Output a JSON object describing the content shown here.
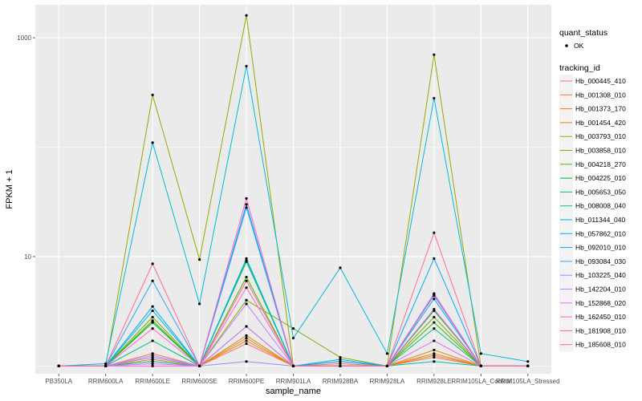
{
  "chart_data": {
    "type": "line",
    "xlabel": "sample_name",
    "ylabel": "FPKM + 1",
    "y_scale": "log10",
    "ylim": [
      0.85,
      2000
    ],
    "y_ticks": [
      {
        "value": 10,
        "label": "10"
      },
      {
        "value": 1000,
        "label": "1000"
      }
    ],
    "grid": true,
    "categories": [
      "PB350LA",
      "RRIM600LA",
      "RRIM600LE",
      "RRIM600SE",
      "RRIM600PE",
      "RRIM901LA",
      "RRIM928BA",
      "RRIM928LA",
      "RRIM928LE",
      "RRIM105LA_Control",
      "RRIM105LA_Stressed"
    ],
    "series": [
      {
        "name": "Hb_000445_410",
        "color": "#F8766D",
        "values": [
          1,
          1,
          1.1,
          1,
          1.6,
          1,
          1.1,
          1,
          1.2,
          1,
          1
        ]
      },
      {
        "name": "Hb_001308_010",
        "color": "#EF7F49",
        "values": [
          1,
          1,
          1.3,
          1,
          1.8,
          1,
          1.05,
          1,
          1.3,
          1,
          1
        ]
      },
      {
        "name": "Hb_001373_170",
        "color": "#E38900",
        "values": [
          1,
          1,
          1.2,
          1,
          1.7,
          1,
          1,
          1,
          1.4,
          1,
          1
        ]
      },
      {
        "name": "Hb_001454_420",
        "color": "#D39200",
        "values": [
          1,
          1,
          1.15,
          1,
          1.9,
          1,
          1,
          1,
          1.25,
          1,
          1
        ]
      },
      {
        "name": "Hb_003793_010",
        "color": "#9CA700",
        "values": [
          1,
          1,
          300,
          9.4,
          1600,
          1,
          1,
          1,
          700,
          1,
          1
        ]
      },
      {
        "name": "Hb_003858_010",
        "color": "#7CAE00",
        "values": [
          1,
          1,
          2.8,
          1,
          4,
          2.2,
          1.2,
          1,
          2.8,
          1,
          1
        ]
      },
      {
        "name": "Hb_004218_270",
        "color": "#49B500",
        "values": [
          1,
          1,
          2.6,
          1,
          6.5,
          1,
          1,
          1,
          2.5,
          1,
          1
        ]
      },
      {
        "name": "Hb_004225_010",
        "color": "#00BA38",
        "values": [
          1,
          1,
          2.5,
          1,
          9,
          1,
          1,
          1,
          3.2,
          1,
          1
        ]
      },
      {
        "name": "Hb_005653_050",
        "color": "#00BF7D",
        "values": [
          1,
          1,
          1.7,
          1,
          9.2,
          1,
          1,
          1,
          2.2,
          1,
          1
        ]
      },
      {
        "name": "Hb_008008_040",
        "color": "#00C0AF",
        "values": [
          1,
          1,
          1.1,
          1,
          2.3,
          1,
          1,
          1,
          1.1,
          1,
          1
        ]
      },
      {
        "name": "Hb_011344_040",
        "color": "#00BCD8",
        "values": [
          1,
          1.05,
          110,
          3.7,
          550,
          1.8,
          7.9,
          1.3,
          280,
          1.3,
          1.1
        ]
      },
      {
        "name": "Hb_057862_010",
        "color": "#00B5EE",
        "values": [
          1,
          1,
          3.2,
          1,
          9.6,
          1,
          1.15,
          1,
          4.1,
          1,
          1
        ]
      },
      {
        "name": "Hb_092010_010",
        "color": "#00A9FF",
        "values": [
          1,
          1,
          3.5,
          1,
          30,
          1,
          1.1,
          1,
          9.6,
          1,
          1
        ]
      },
      {
        "name": "Hb_093084_030",
        "color": "#35A2FF",
        "values": [
          1,
          1,
          6,
          1,
          28,
          1,
          1,
          1,
          4.4,
          1,
          1
        ]
      },
      {
        "name": "Hb_103225_040",
        "color": "#9590FF",
        "values": [
          1,
          1,
          1.2,
          1,
          1.1,
          1,
          1,
          1,
          4.6,
          1,
          1
        ]
      },
      {
        "name": "Hb_142204_010",
        "color": "#C77CFF",
        "values": [
          1,
          1,
          1.25,
          1,
          3.7,
          1,
          1,
          1,
          4.5,
          1,
          1
        ]
      },
      {
        "name": "Hb_152868_020",
        "color": "#E76BF3",
        "values": [
          1,
          1,
          1.05,
          1,
          2.3,
          1,
          1,
          1,
          1.7,
          1,
          1
        ]
      },
      {
        "name": "Hb_162450_010",
        "color": "#FA62DB",
        "values": [
          1,
          1,
          1,
          1,
          5.2,
          1,
          1,
          1,
          3.3,
          1,
          1
        ]
      },
      {
        "name": "Hb_181908_010",
        "color": "#FF62BC",
        "values": [
          1,
          1,
          2.2,
          1,
          34,
          1,
          1,
          1,
          4.5,
          1,
          1
        ]
      },
      {
        "name": "Hb_185608_010",
        "color": "#FF6C91",
        "values": [
          1,
          1,
          8.6,
          1,
          6,
          1,
          1,
          1,
          16.5,
          1,
          1
        ]
      }
    ],
    "legend": {
      "placement": "right",
      "shape_title": "quant_status",
      "shape_entry": "OK",
      "color_title": "tracking_id"
    },
    "point_color": "#000000",
    "panel_color": "#EBEBEB",
    "grid_color": "#FFFFFF"
  }
}
